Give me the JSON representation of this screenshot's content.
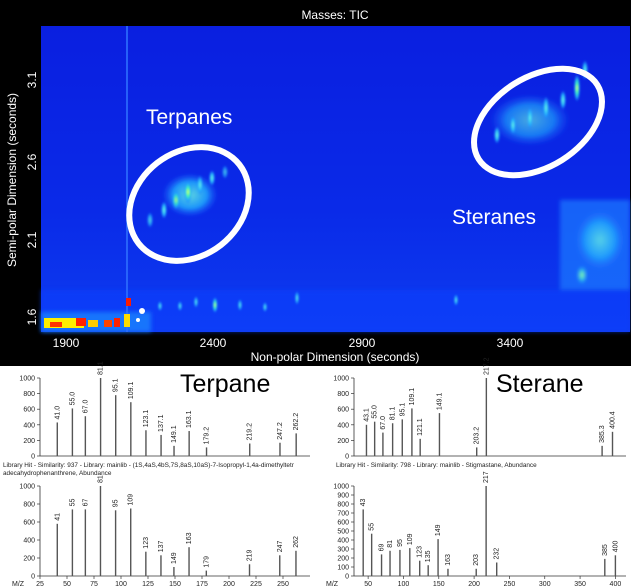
{
  "gc": {
    "title": "Masses:  TIC",
    "ylabel": "Semi-polar Dimension (seconds)",
    "xlabel": "Non-polar Dimension (seconds)",
    "xticks": [
      "1900",
      "2400",
      "2900",
      "3400"
    ],
    "yticks": [
      "3.1",
      "2.6",
      "2.1",
      "1.6"
    ],
    "annot_terpanes": "Terpanes",
    "annot_steranes": "Steranes",
    "colors": {
      "bg": "#0a22e6",
      "hot": "#ffff00",
      "peak_red": "#ff2200",
      "ellipse": "#ffffff"
    }
  },
  "panels": {
    "terpane_title": "Terpane",
    "sterane_title": "Sterane",
    "hit_left": "Library Hit - Similarity: 937 - Library: mainlib - (1S,4aS,4bS,7S,8aS,10aS)-7-Isopropyl-1,4a-dimethyltetr adecahydrophenanthrene, Abundance",
    "hit_right": "Library Hit - Similarity: 798 - Library: mainlib - Stigmastane, Abundance",
    "mz_label": "M/Z"
  },
  "chart_data": [
    {
      "type": "heatmap",
      "title": "Masses:  TIC",
      "xlabel": "Non-polar Dimension (seconds)",
      "ylabel": "Semi-polar Dimension (seconds)",
      "xlim": [
        1840,
        3960
      ],
      "ylim": [
        1.5,
        3.35
      ],
      "xticks": [
        1900,
        2400,
        2900,
        3400
      ],
      "yticks": [
        1.6,
        2.1,
        2.6,
        3.1
      ],
      "annotations": [
        "Terpanes",
        "Steranes"
      ]
    },
    {
      "type": "bar",
      "title": "Terpane",
      "xlim": [
        25,
        275
      ],
      "ylim": [
        0,
        1000
      ],
      "yticks": [
        0,
        200,
        400,
        600,
        800,
        1000
      ],
      "xticks": [],
      "peaks": [
        {
          "x": 41.0,
          "y": 430,
          "label": "41.0"
        },
        {
          "x": 55.0,
          "y": 610,
          "label": "55.0"
        },
        {
          "x": 67.0,
          "y": 510,
          "label": "67.0"
        },
        {
          "x": 81.1,
          "y": 1000,
          "label": "81.1"
        },
        {
          "x": 95.1,
          "y": 780,
          "label": "95.1"
        },
        {
          "x": 109.1,
          "y": 690,
          "label": "109.1"
        },
        {
          "x": 123.1,
          "y": 330,
          "label": "123.1"
        },
        {
          "x": 137.1,
          "y": 270,
          "label": "137.1"
        },
        {
          "x": 149.1,
          "y": 130,
          "label": "149.1"
        },
        {
          "x": 163.1,
          "y": 320,
          "label": "163.1"
        },
        {
          "x": 179.2,
          "y": 110,
          "label": "179.2"
        },
        {
          "x": 219.2,
          "y": 160,
          "label": "219.2"
        },
        {
          "x": 247.2,
          "y": 170,
          "label": "247.2"
        },
        {
          "x": 262.2,
          "y": 290,
          "label": "262.2"
        }
      ]
    },
    {
      "type": "bar",
      "title": "Sterane",
      "xlim": [
        25,
        420
      ],
      "ylim": [
        0,
        1000
      ],
      "yticks": [
        0,
        200,
        400,
        600,
        800,
        1000
      ],
      "xticks": [],
      "peaks": [
        {
          "x": 43.1,
          "y": 400,
          "label": "43.1"
        },
        {
          "x": 55.0,
          "y": 440,
          "label": "55.0"
        },
        {
          "x": 67.0,
          "y": 300,
          "label": "67.0"
        },
        {
          "x": 81.1,
          "y": 420,
          "label": "81.1"
        },
        {
          "x": 95.1,
          "y": 470,
          "label": "95.1"
        },
        {
          "x": 109.1,
          "y": 610,
          "label": "109.1"
        },
        {
          "x": 121.1,
          "y": 220,
          "label": "121.1"
        },
        {
          "x": 149.1,
          "y": 550,
          "label": "149.1"
        },
        {
          "x": 203.2,
          "y": 110,
          "label": "203.2"
        },
        {
          "x": 217.2,
          "y": 1000,
          "label": "217.2"
        },
        {
          "x": 385.3,
          "y": 130,
          "label": "385.3"
        },
        {
          "x": 400.4,
          "y": 310,
          "label": "400.4"
        }
      ]
    },
    {
      "type": "bar",
      "title": "",
      "xlabel": "M/Z",
      "xlim": [
        25,
        275
      ],
      "ylim": [
        0,
        1000
      ],
      "yticks": [
        0,
        200,
        400,
        600,
        800,
        1000
      ],
      "xticks": [
        25,
        50,
        75,
        100,
        125,
        150,
        175,
        200,
        225,
        250
      ],
      "peaks": [
        {
          "x": 41,
          "y": 580,
          "label": "41"
        },
        {
          "x": 55,
          "y": 740,
          "label": "55"
        },
        {
          "x": 67,
          "y": 740,
          "label": "67"
        },
        {
          "x": 81,
          "y": 1000,
          "label": "81"
        },
        {
          "x": 95,
          "y": 730,
          "label": "95"
        },
        {
          "x": 109,
          "y": 750,
          "label": "109"
        },
        {
          "x": 123,
          "y": 270,
          "label": "123"
        },
        {
          "x": 137,
          "y": 230,
          "label": "137"
        },
        {
          "x": 149,
          "y": 100,
          "label": "149"
        },
        {
          "x": 163,
          "y": 320,
          "label": "163"
        },
        {
          "x": 179,
          "y": 60,
          "label": "179"
        },
        {
          "x": 219,
          "y": 130,
          "label": "219"
        },
        {
          "x": 247,
          "y": 230,
          "label": "247"
        },
        {
          "x": 262,
          "y": 280,
          "label": "262"
        }
      ]
    },
    {
      "type": "bar",
      "title": "",
      "xlabel": "M/Z",
      "xlim": [
        30,
        415
      ],
      "ylim": [
        0,
        1000
      ],
      "yticks": [
        0,
        100,
        200,
        300,
        400,
        500,
        600,
        700,
        800,
        900,
        1000
      ],
      "xticks": [
        50,
        100,
        150,
        200,
        250,
        300,
        350,
        400
      ],
      "peaks": [
        {
          "x": 43,
          "y": 740,
          "label": "43"
        },
        {
          "x": 55,
          "y": 470,
          "label": "55"
        },
        {
          "x": 69,
          "y": 240,
          "label": "69"
        },
        {
          "x": 81,
          "y": 280,
          "label": "81"
        },
        {
          "x": 95,
          "y": 290,
          "label": "95"
        },
        {
          "x": 109,
          "y": 310,
          "label": "109"
        },
        {
          "x": 123,
          "y": 170,
          "label": "123"
        },
        {
          "x": 135,
          "y": 120,
          "label": "135"
        },
        {
          "x": 149,
          "y": 410,
          "label": "149"
        },
        {
          "x": 163,
          "y": 80,
          "label": "163"
        },
        {
          "x": 203,
          "y": 80,
          "label": "203"
        },
        {
          "x": 217,
          "y": 1000,
          "label": "217"
        },
        {
          "x": 232,
          "y": 150,
          "label": "232"
        },
        {
          "x": 385,
          "y": 190,
          "label": "385"
        },
        {
          "x": 400,
          "y": 230,
          "label": "400"
        }
      ]
    }
  ]
}
